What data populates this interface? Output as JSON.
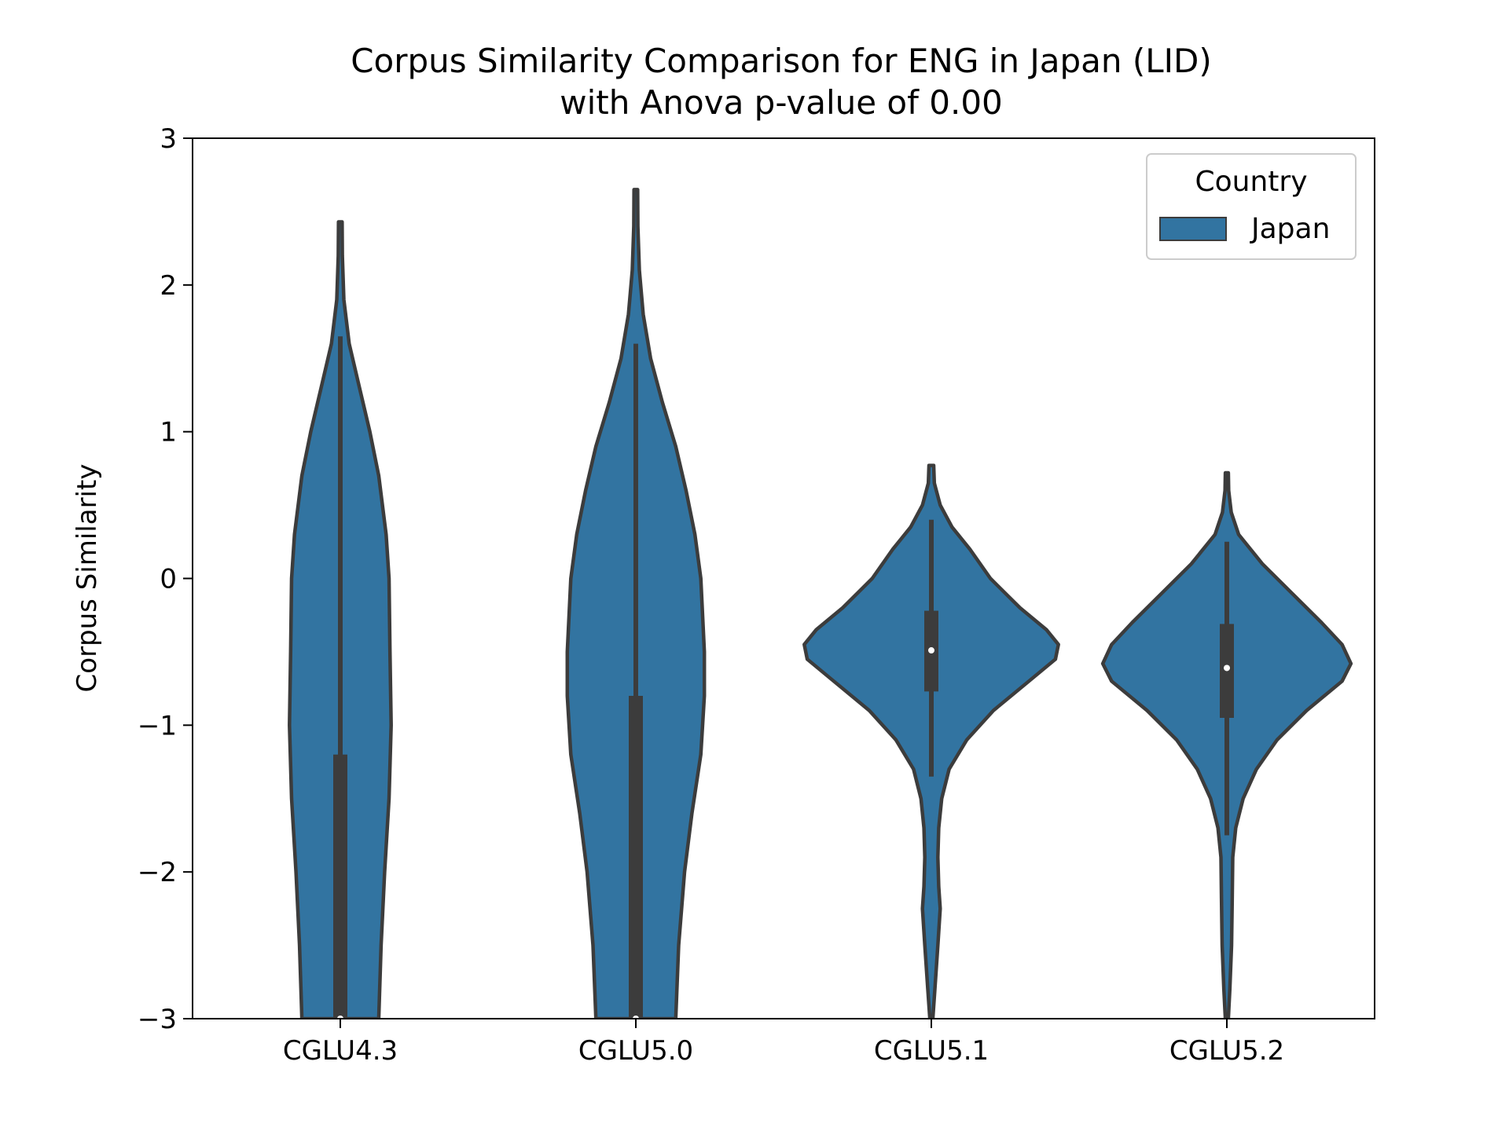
{
  "chart_data": {
    "type": "violin",
    "title": "Corpus Similarity Comparison for ENG in Japan (LID)",
    "subtitle": "with Anova p-value of 0.00",
    "xlabel": "",
    "ylabel": "Corpus Similarity",
    "ylim": [
      -3,
      3
    ],
    "yticks": [
      -3,
      -2,
      -1,
      0,
      1,
      2,
      3
    ],
    "ytick_labels": [
      "−3",
      "−2",
      "−1",
      "0",
      "1",
      "2",
      "3"
    ],
    "categories": [
      "CGLU4.3",
      "CGLU5.0",
      "CGLU5.1",
      "CGLU5.2"
    ],
    "grid": false,
    "legend": {
      "title": "Country",
      "position": "top-right",
      "entries": [
        {
          "name": "Japan",
          "color": "#3274a1"
        }
      ]
    },
    "colors": {
      "fill": "#3274a1",
      "edge": "#3c3c3c",
      "median": "#ffffff"
    },
    "series": [
      {
        "name": "Japan",
        "violins": [
          {
            "category": "CGLU4.3",
            "box": {
              "q1": -3.0,
              "median": -3.0,
              "q3": -1.2,
              "whisker_low": -3.0,
              "whisker_high": 1.65
            },
            "density": [
              [
                2.43,
                0.006
              ],
              [
                2.2,
                0.007
              ],
              [
                1.9,
                0.012
              ],
              [
                1.6,
                0.03
              ],
              [
                1.3,
                0.065
              ],
              [
                1.0,
                0.1
              ],
              [
                0.7,
                0.13
              ],
              [
                0.3,
                0.155
              ],
              [
                0.0,
                0.165
              ],
              [
                -0.5,
                0.168
              ],
              [
                -1.0,
                0.172
              ],
              [
                -1.5,
                0.165
              ],
              [
                -2.0,
                0.15
              ],
              [
                -2.5,
                0.138
              ],
              [
                -3.0,
                0.13
              ]
            ]
          },
          {
            "category": "CGLU5.0",
            "box": {
              "q1": -3.0,
              "median": -3.0,
              "q3": -0.8,
              "whisker_low": -3.0,
              "whisker_high": 1.6
            },
            "density": [
              [
                2.65,
                0.006
              ],
              [
                2.4,
                0.007
              ],
              [
                2.1,
                0.012
              ],
              [
                1.8,
                0.025
              ],
              [
                1.5,
                0.05
              ],
              [
                1.2,
                0.09
              ],
              [
                0.9,
                0.135
              ],
              [
                0.6,
                0.17
              ],
              [
                0.3,
                0.2
              ],
              [
                0.0,
                0.22
              ],
              [
                -0.5,
                0.232
              ],
              [
                -0.8,
                0.232
              ],
              [
                -1.2,
                0.22
              ],
              [
                -1.6,
                0.19
              ],
              [
                -2.0,
                0.165
              ],
              [
                -2.5,
                0.145
              ],
              [
                -3.0,
                0.135
              ]
            ]
          },
          {
            "category": "CGLU5.1",
            "box": {
              "q1": -0.77,
              "median": -0.49,
              "q3": -0.22,
              "whisker_low": -1.35,
              "whisker_high": 0.4
            },
            "density": [
              [
                0.77,
                0.008
              ],
              [
                0.65,
                0.01
              ],
              [
                0.5,
                0.03
              ],
              [
                0.35,
                0.07
              ],
              [
                0.2,
                0.13
              ],
              [
                0.0,
                0.2
              ],
              [
                -0.2,
                0.3
              ],
              [
                -0.35,
                0.39
              ],
              [
                -0.45,
                0.43
              ],
              [
                -0.55,
                0.42
              ],
              [
                -0.7,
                0.33
              ],
              [
                -0.9,
                0.21
              ],
              [
                -1.1,
                0.12
              ],
              [
                -1.3,
                0.06
              ],
              [
                -1.5,
                0.035
              ],
              [
                -1.7,
                0.025
              ],
              [
                -1.9,
                0.022
              ],
              [
                -2.1,
                0.025
              ],
              [
                -2.25,
                0.03
              ],
              [
                -2.5,
                0.022
              ],
              [
                -2.8,
                0.012
              ],
              [
                -3.0,
                0.005
              ]
            ]
          },
          {
            "category": "CGLU5.2",
            "box": {
              "q1": -0.95,
              "median": -0.61,
              "q3": -0.31,
              "whisker_low": -1.75,
              "whisker_high": 0.25
            },
            "density": [
              [
                0.72,
                0.005
              ],
              [
                0.6,
                0.006
              ],
              [
                0.45,
                0.015
              ],
              [
                0.3,
                0.04
              ],
              [
                0.1,
                0.12
              ],
              [
                -0.1,
                0.22
              ],
              [
                -0.3,
                0.32
              ],
              [
                -0.45,
                0.39
              ],
              [
                -0.58,
                0.42
              ],
              [
                -0.7,
                0.39
              ],
              [
                -0.9,
                0.27
              ],
              [
                -1.1,
                0.17
              ],
              [
                -1.3,
                0.1
              ],
              [
                -1.5,
                0.055
              ],
              [
                -1.7,
                0.03
              ],
              [
                -1.9,
                0.02
              ],
              [
                -2.2,
                0.018
              ],
              [
                -2.5,
                0.016
              ],
              [
                -2.8,
                0.01
              ],
              [
                -3.0,
                0.005
              ]
            ]
          }
        ]
      }
    ]
  }
}
